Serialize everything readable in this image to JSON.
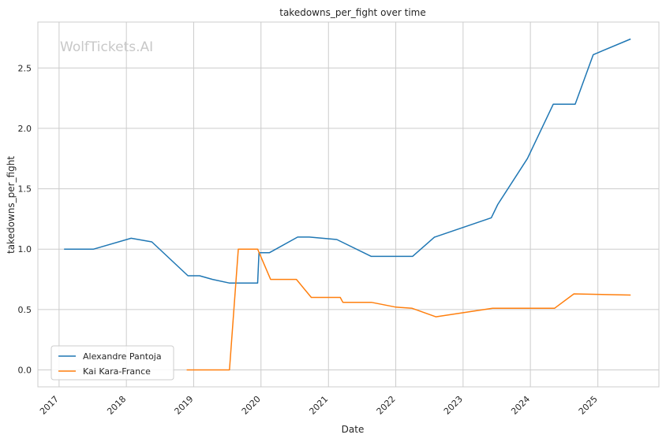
{
  "chart_data": {
    "type": "line",
    "title": "takedowns_per_fight over time",
    "xlabel": "Date",
    "ylabel": "takedowns_per_fight",
    "watermark": "WolfTickets.AI",
    "x_ticks": [
      "2017",
      "2018",
      "2019",
      "2020",
      "2021",
      "2022",
      "2023",
      "2024",
      "2025"
    ],
    "y_ticks": [
      "0.0",
      "0.5",
      "1.0",
      "1.5",
      "2.0",
      "2.5"
    ],
    "xlim": [
      "2016-09-08",
      "2025-11-28"
    ],
    "ylim": [
      -0.14,
      2.88
    ],
    "grid": true,
    "legend_position": "lower-left",
    "series": [
      {
        "name": "Alexandre Pantoja",
        "color": "#1f77b4",
        "points": [
          [
            "2017-01-28",
            1.0
          ],
          [
            "2017-07-07",
            1.0
          ],
          [
            "2018-01-27",
            1.09
          ],
          [
            "2018-05-19",
            1.06
          ],
          [
            "2018-12-01",
            0.78
          ],
          [
            "2019-02-02",
            0.78
          ],
          [
            "2019-04-13",
            0.75
          ],
          [
            "2019-07-13",
            0.72
          ],
          [
            "2019-12-14",
            0.72
          ],
          [
            "2019-12-21",
            0.97
          ],
          [
            "2020-02-15",
            0.97
          ],
          [
            "2020-07-18",
            1.1
          ],
          [
            "2020-09-19",
            1.1
          ],
          [
            "2021-02-15",
            1.08
          ],
          [
            "2021-08-21",
            0.94
          ],
          [
            "2022-04-02",
            0.94
          ],
          [
            "2022-07-30",
            1.1
          ],
          [
            "2022-07-31",
            1.1
          ],
          [
            "2023-06-03",
            1.26
          ],
          [
            "2023-07-08",
            1.37
          ],
          [
            "2023-12-16",
            1.75
          ],
          [
            "2024-05-04",
            2.2
          ],
          [
            "2024-08-31",
            2.2
          ],
          [
            "2024-12-07",
            2.61
          ],
          [
            "2025-06-28",
            2.74
          ]
        ]
      },
      {
        "name": "Kai Kara-France",
        "color": "#ff7f0e",
        "points": [
          [
            "2018-11-24",
            0.0
          ],
          [
            "2019-07-14",
            0.0
          ],
          [
            "2019-08-31",
            1.0
          ],
          [
            "2019-12-14",
            1.0
          ],
          [
            "2020-02-22",
            0.75
          ],
          [
            "2020-07-11",
            0.75
          ],
          [
            "2020-09-30",
            0.6
          ],
          [
            "2021-03-06",
            0.6
          ],
          [
            "2021-03-20",
            0.56
          ],
          [
            "2021-08-21",
            0.56
          ],
          [
            "2022-01-01",
            0.52
          ],
          [
            "2022-03-31",
            0.51
          ],
          [
            "2022-08-06",
            0.44
          ],
          [
            "2023-06-10",
            0.51
          ],
          [
            "2024-05-11",
            0.51
          ],
          [
            "2024-08-24",
            0.63
          ],
          [
            "2025-06-28",
            0.62
          ]
        ]
      }
    ]
  }
}
